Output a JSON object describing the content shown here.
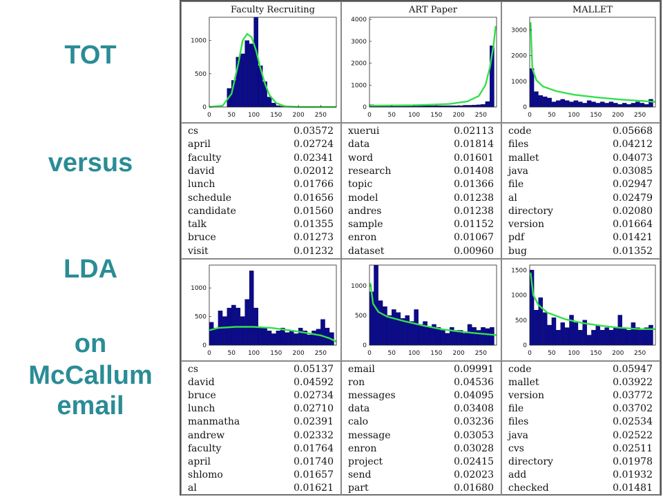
{
  "side_title": {
    "line1": "TOT",
    "line2": "versus",
    "line3": "LDA",
    "line4": "on",
    "line5": "McCallum",
    "line6": "email"
  },
  "colors": {
    "title": "#2a8c96",
    "bar": "#0b0b8c",
    "curve": "#33e04a"
  },
  "chart_data": [
    {
      "type": "bar",
      "model": "TOT",
      "title": "Faculty Recruiting",
      "x_ticks": [
        0,
        50,
        100,
        150,
        200,
        250
      ],
      "y_ticks": [
        0,
        500,
        1000
      ],
      "xlim": [
        0,
        285
      ],
      "ylim": [
        0,
        1350
      ],
      "bin_width": 10,
      "bins_start": [
        0,
        10,
        20,
        30,
        40,
        50,
        60,
        70,
        80,
        90,
        100,
        110,
        120,
        130,
        140,
        150,
        160,
        170,
        180,
        190,
        200,
        210,
        220,
        230,
        240,
        250,
        260,
        270
      ],
      "values": [
        0,
        0,
        0,
        0,
        280,
        400,
        750,
        800,
        1000,
        950,
        1350,
        620,
        380,
        150,
        60,
        20,
        10,
        0,
        0,
        0,
        0,
        0,
        0,
        0,
        0,
        0,
        0,
        0
      ],
      "curve": [
        [
          0,
          0
        ],
        [
          30,
          20
        ],
        [
          50,
          200
        ],
        [
          65,
          650
        ],
        [
          75,
          1000
        ],
        [
          85,
          1100
        ],
        [
          95,
          1050
        ],
        [
          105,
          850
        ],
        [
          115,
          580
        ],
        [
          125,
          350
        ],
        [
          135,
          180
        ],
        [
          150,
          60
        ],
        [
          170,
          10
        ],
        [
          200,
          0
        ],
        [
          285,
          0
        ]
      ],
      "words": [
        {
          "word": "cs",
          "prob": "0.03572"
        },
        {
          "word": "april",
          "prob": "0.02724"
        },
        {
          "word": "faculty",
          "prob": "0.02341"
        },
        {
          "word": "david",
          "prob": "0.02012"
        },
        {
          "word": "lunch",
          "prob": "0.01766"
        },
        {
          "word": "schedule",
          "prob": "0.01656"
        },
        {
          "word": "candidate",
          "prob": "0.01560"
        },
        {
          "word": "talk",
          "prob": "0.01355"
        },
        {
          "word": "bruce",
          "prob": "0.01273"
        },
        {
          "word": "visit",
          "prob": "0.01232"
        }
      ]
    },
    {
      "type": "bar",
      "model": "TOT",
      "title": "ART Paper",
      "x_ticks": [
        0,
        50,
        100,
        150,
        200,
        250
      ],
      "y_ticks": [
        0,
        1000,
        2000,
        3000,
        4000
      ],
      "xlim": [
        0,
        285
      ],
      "ylim": [
        0,
        4100
      ],
      "bin_width": 10,
      "bins_start": [
        0,
        10,
        20,
        30,
        40,
        50,
        60,
        70,
        80,
        90,
        100,
        110,
        120,
        130,
        140,
        150,
        160,
        170,
        180,
        190,
        200,
        210,
        220,
        230,
        240,
        250,
        260,
        270
      ],
      "values": [
        100,
        60,
        60,
        60,
        60,
        60,
        60,
        60,
        60,
        60,
        60,
        60,
        60,
        60,
        60,
        60,
        60,
        60,
        60,
        60,
        60,
        80,
        80,
        90,
        100,
        120,
        250,
        2800
      ],
      "curve": [
        [
          0,
          60
        ],
        [
          100,
          80
        ],
        [
          180,
          140
        ],
        [
          220,
          260
        ],
        [
          245,
          500
        ],
        [
          260,
          1000
        ],
        [
          270,
          1800
        ],
        [
          278,
          2800
        ],
        [
          283,
          3700
        ]
      ],
      "words": [
        {
          "word": "xuerui",
          "prob": "0.02113"
        },
        {
          "word": "data",
          "prob": "0.01814"
        },
        {
          "word": "word",
          "prob": "0.01601"
        },
        {
          "word": "research",
          "prob": "0.01408"
        },
        {
          "word": "topic",
          "prob": "0.01366"
        },
        {
          "word": "model",
          "prob": "0.01238"
        },
        {
          "word": "andres",
          "prob": "0.01238"
        },
        {
          "word": "sample",
          "prob": "0.01152"
        },
        {
          "word": "enron",
          "prob": "0.01067"
        },
        {
          "word": "dataset",
          "prob": "0.00960"
        }
      ]
    },
    {
      "type": "bar",
      "model": "TOT",
      "title": "MALLET",
      "x_ticks": [
        0,
        50,
        100,
        150,
        200,
        250
      ],
      "y_ticks": [
        0,
        1000,
        2000,
        3000
      ],
      "xlim": [
        0,
        285
      ],
      "ylim": [
        0,
        3500
      ],
      "bin_width": 10,
      "bins_start": [
        0,
        10,
        20,
        30,
        40,
        50,
        60,
        70,
        80,
        90,
        100,
        110,
        120,
        130,
        140,
        150,
        160,
        170,
        180,
        190,
        200,
        210,
        220,
        230,
        240,
        250,
        260,
        270
      ],
      "values": [
        1500,
        600,
        450,
        400,
        350,
        200,
        250,
        300,
        250,
        200,
        250,
        200,
        150,
        250,
        200,
        150,
        200,
        150,
        200,
        150,
        100,
        150,
        100,
        150,
        200,
        150,
        100,
        300
      ],
      "curve": [
        [
          2,
          3300
        ],
        [
          6,
          1500
        ],
        [
          15,
          1050
        ],
        [
          30,
          800
        ],
        [
          60,
          620
        ],
        [
          100,
          480
        ],
        [
          150,
          380
        ],
        [
          200,
          300
        ],
        [
          250,
          240
        ],
        [
          285,
          200
        ]
      ],
      "words": [
        {
          "word": "code",
          "prob": "0.05668"
        },
        {
          "word": "files",
          "prob": "0.04212"
        },
        {
          "word": "mallet",
          "prob": "0.04073"
        },
        {
          "word": "java",
          "prob": "0.03085"
        },
        {
          "word": "file",
          "prob": "0.02947"
        },
        {
          "word": "al",
          "prob": "0.02479"
        },
        {
          "word": "directory",
          "prob": "0.02080"
        },
        {
          "word": "version",
          "prob": "0.01664"
        },
        {
          "word": "pdf",
          "prob": "0.01421"
        },
        {
          "word": "bug",
          "prob": "0.01352"
        }
      ]
    },
    {
      "type": "bar",
      "model": "LDA",
      "title": "",
      "x_ticks": [
        0,
        50,
        100,
        150,
        200,
        250
      ],
      "y_ticks": [
        0,
        500,
        1000
      ],
      "xlim": [
        0,
        285
      ],
      "ylim": [
        0,
        1400
      ],
      "bin_width": 10,
      "bins_start": [
        0,
        10,
        20,
        30,
        40,
        50,
        60,
        70,
        80,
        90,
        100,
        110,
        120,
        130,
        140,
        150,
        160,
        170,
        180,
        190,
        200,
        210,
        220,
        230,
        240,
        250,
        260,
        270
      ],
      "values": [
        400,
        300,
        600,
        500,
        650,
        700,
        650,
        500,
        800,
        1300,
        650,
        300,
        300,
        250,
        200,
        250,
        300,
        220,
        250,
        200,
        300,
        250,
        180,
        250,
        280,
        450,
        300,
        220
      ],
      "curve": [
        [
          0,
          260
        ],
        [
          20,
          300
        ],
        [
          60,
          320
        ],
        [
          100,
          320
        ],
        [
          140,
          300
        ],
        [
          180,
          260
        ],
        [
          220,
          210
        ],
        [
          250,
          170
        ],
        [
          270,
          120
        ],
        [
          285,
          60
        ]
      ],
      "words": [
        {
          "word": "cs",
          "prob": "0.05137"
        },
        {
          "word": "david",
          "prob": "0.04592"
        },
        {
          "word": "bruce",
          "prob": "0.02734"
        },
        {
          "word": "lunch",
          "prob": "0.02710"
        },
        {
          "word": "manmatha",
          "prob": "0.02391"
        },
        {
          "word": "andrew",
          "prob": "0.02332"
        },
        {
          "word": "faculty",
          "prob": "0.01764"
        },
        {
          "word": "april",
          "prob": "0.01740"
        },
        {
          "word": "shlomo",
          "prob": "0.01657"
        },
        {
          "word": "al",
          "prob": "0.01621"
        }
      ]
    },
    {
      "type": "bar",
      "model": "LDA",
      "title": "",
      "x_ticks": [
        0,
        50,
        100,
        150,
        200,
        250
      ],
      "y_ticks": [
        0,
        500,
        1000
      ],
      "xlim": [
        0,
        285
      ],
      "ylim": [
        0,
        1350
      ],
      "bin_width": 10,
      "bins_start": [
        0,
        10,
        20,
        30,
        40,
        50,
        60,
        70,
        80,
        90,
        100,
        110,
        120,
        130,
        140,
        150,
        160,
        170,
        180,
        190,
        200,
        210,
        220,
        230,
        240,
        250,
        260,
        270
      ],
      "values": [
        900,
        1350,
        750,
        650,
        500,
        600,
        550,
        450,
        500,
        400,
        600,
        350,
        400,
        300,
        350,
        300,
        250,
        200,
        300,
        250,
        250,
        200,
        350,
        300,
        250,
        300,
        280,
        300
      ],
      "curve": [
        [
          2,
          1050
        ],
        [
          8,
          700
        ],
        [
          20,
          560
        ],
        [
          40,
          480
        ],
        [
          80,
          400
        ],
        [
          120,
          330
        ],
        [
          160,
          270
        ],
        [
          200,
          230
        ],
        [
          240,
          200
        ],
        [
          285,
          170
        ]
      ],
      "words": [
        {
          "word": "email",
          "prob": "0.09991"
        },
        {
          "word": "ron",
          "prob": "0.04536"
        },
        {
          "word": "messages",
          "prob": "0.04095"
        },
        {
          "word": "data",
          "prob": "0.03408"
        },
        {
          "word": "calo",
          "prob": "0.03236"
        },
        {
          "word": "message",
          "prob": "0.03053"
        },
        {
          "word": "enron",
          "prob": "0.03028"
        },
        {
          "word": "project",
          "prob": "0.02415"
        },
        {
          "word": "send",
          "prob": "0.02023"
        },
        {
          "word": "part",
          "prob": "0.01680"
        }
      ]
    },
    {
      "type": "bar",
      "model": "LDA",
      "title": "",
      "x_ticks": [
        0,
        50,
        100,
        150,
        200,
        250
      ],
      "y_ticks": [
        0,
        500,
        1000,
        1500
      ],
      "xlim": [
        0,
        285
      ],
      "ylim": [
        0,
        1600
      ],
      "bin_width": 10,
      "bins_start": [
        0,
        10,
        20,
        30,
        40,
        50,
        60,
        70,
        80,
        90,
        100,
        110,
        120,
        130,
        140,
        150,
        160,
        170,
        180,
        190,
        200,
        210,
        220,
        230,
        240,
        250,
        260,
        270
      ],
      "values": [
        1500,
        700,
        950,
        650,
        400,
        550,
        300,
        450,
        350,
        600,
        450,
        300,
        500,
        200,
        300,
        400,
        300,
        350,
        300,
        350,
        600,
        350,
        300,
        450,
        350,
        300,
        350,
        400
      ],
      "curve": [
        [
          2,
          1450
        ],
        [
          8,
          1000
        ],
        [
          20,
          800
        ],
        [
          40,
          650
        ],
        [
          80,
          520
        ],
        [
          120,
          440
        ],
        [
          160,
          390
        ],
        [
          200,
          350
        ],
        [
          250,
          320
        ],
        [
          285,
          320
        ]
      ],
      "words": [
        {
          "word": "code",
          "prob": "0.05947"
        },
        {
          "word": "mallet",
          "prob": "0.03922"
        },
        {
          "word": "version",
          "prob": "0.03772"
        },
        {
          "word": "file",
          "prob": "0.03702"
        },
        {
          "word": "files",
          "prob": "0.02534"
        },
        {
          "word": "java",
          "prob": "0.02522"
        },
        {
          "word": "cvs",
          "prob": "0.02511"
        },
        {
          "word": "directory",
          "prob": "0.01978"
        },
        {
          "word": "add",
          "prob": "0.01932"
        },
        {
          "word": "checked",
          "prob": "0.01481"
        }
      ]
    }
  ]
}
